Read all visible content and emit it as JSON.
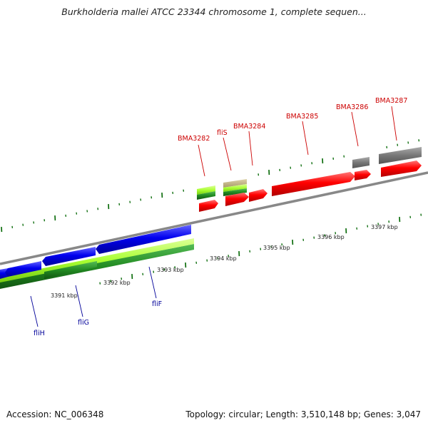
{
  "title": "Burkholderia mallei ATCC 23344 chromosome 1, complete sequen...",
  "footer": {
    "accession": "Accession: NC_006348",
    "summary": "Topology: circular; Length: 3,510,148 bp; Genes: 3,047"
  },
  "ruler": {
    "labels": [
      "3391 kbp",
      "3392 kbp",
      "3393 kbp",
      "3394 kbp",
      "3395 kbp",
      "3396 kbp",
      "3397 kbp"
    ]
  },
  "genes_forward": {
    "labels": [
      "BMA3282",
      "fliS",
      "BMA3284",
      "BMA3285",
      "BMA3286",
      "BMA3287"
    ]
  },
  "genes_reverse": {
    "labels": [
      "fliH",
      "fliG",
      "fliF"
    ]
  },
  "colors": {
    "forward_gene": "#ff0000",
    "reverse_gene": "#0000ee",
    "pseudogene": "#777777",
    "cds_light": "#aaff33",
    "cds_dark": "#228b22",
    "backbone": "#888888",
    "tick": "#006600",
    "label_forward": "#cc0000",
    "label_reverse": "#000099"
  }
}
